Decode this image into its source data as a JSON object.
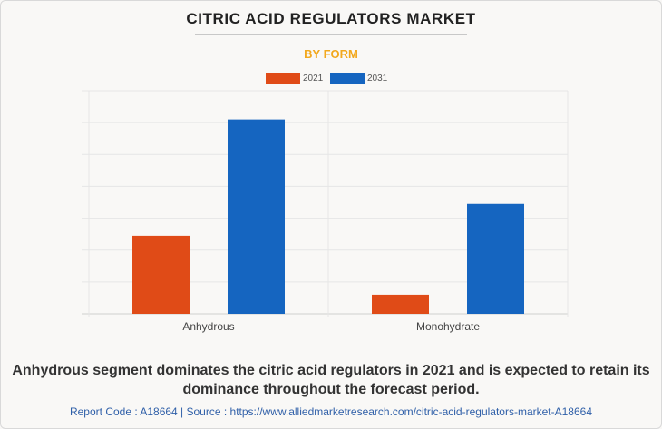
{
  "header": {
    "title": "CITRIC ACID REGULATORS MARKET",
    "subtitle": "BY FORM"
  },
  "chart_data": {
    "type": "bar",
    "categories": [
      "Anhydrous",
      "Monohydrate"
    ],
    "series": [
      {
        "name": "2021",
        "color": "#e04b17",
        "values": [
          245,
          60
        ]
      },
      {
        "name": "2031",
        "color": "#1565c0",
        "values": [
          610,
          345
        ]
      }
    ],
    "ylim": [
      0,
      700
    ],
    "grid": true,
    "legend_position": "top-center",
    "y_tick_labels_shown": false
  },
  "caption": "Anhydrous segment dominates the citric acid regulators in 2021 and is expected to retain its dominance throughout the forecast period.",
  "footer": "Report Code : A18664  |  Source : https://www.alliedmarketresearch.com/citric-acid-regulators-market-A18664"
}
